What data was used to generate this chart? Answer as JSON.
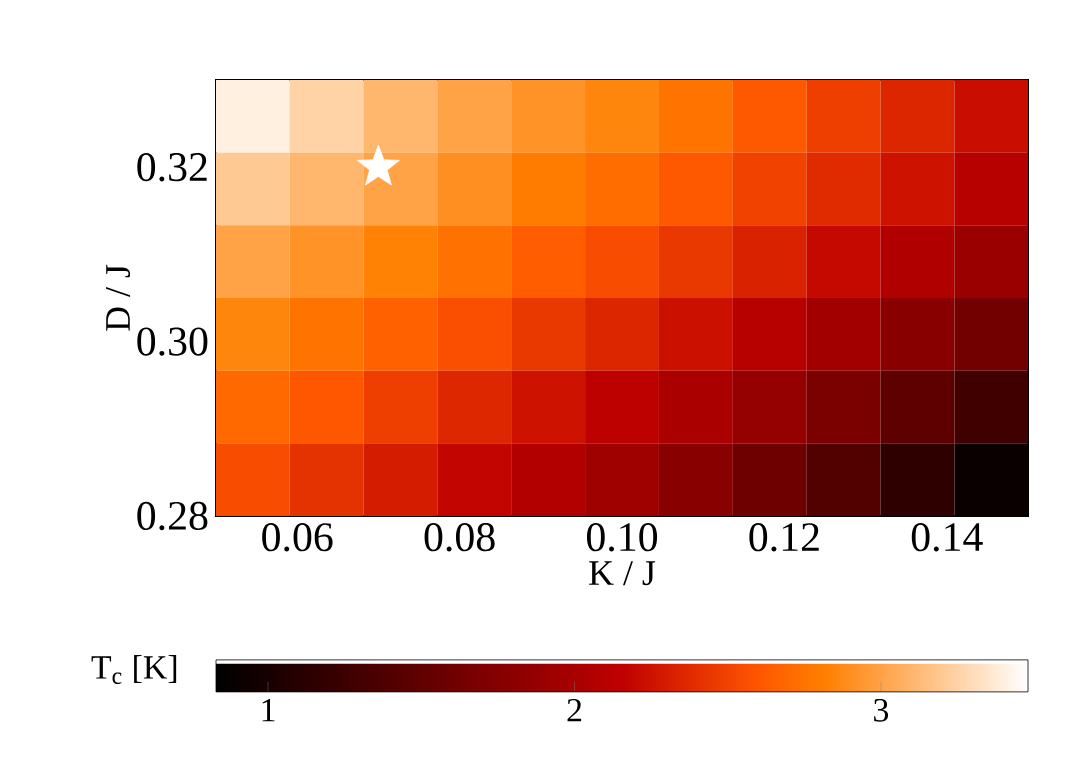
{
  "chart_data": {
    "type": "heatmap",
    "xlabel": "K / J",
    "ylabel": "D / J",
    "clabel": "T$_{c}$ [K]",
    "x": [
      0.0545,
      0.0636,
      0.0727,
      0.0818,
      0.0909,
      0.1,
      0.1091,
      0.1182,
      0.1273,
      0.1364,
      0.1455
    ],
    "y": [
      0.3258,
      0.3175,
      0.3092,
      0.3008,
      0.2925,
      0.2842
    ],
    "xlim": [
      0.05,
      0.15
    ],
    "ylim": [
      0.28,
      0.33
    ],
    "xticks": [
      0.06,
      0.08,
      {
        "value": 0.1,
        "label": "0.10"
      },
      0.12,
      0.14
    ],
    "yticks": [
      0.28,
      {
        "value": 0.3,
        "label": "0.30"
      },
      0.32
    ],
    "cells": [
      [
        3.4,
        3.25,
        3.1,
        3.0,
        2.92,
        2.85,
        2.75,
        2.62,
        2.48,
        2.35,
        2.22
      ],
      [
        3.2,
        3.1,
        3.0,
        2.9,
        2.8,
        2.72,
        2.62,
        2.5,
        2.38,
        2.25,
        2.1
      ],
      [
        3.0,
        2.92,
        2.83,
        2.74,
        2.64,
        2.55,
        2.45,
        2.33,
        2.2,
        2.05,
        1.9
      ],
      [
        2.85,
        2.76,
        2.66,
        2.56,
        2.45,
        2.35,
        2.24,
        2.1,
        1.95,
        1.78,
        1.62
      ],
      [
        2.7,
        2.6,
        2.48,
        2.36,
        2.25,
        2.14,
        2.01,
        1.86,
        1.68,
        1.48,
        1.28
      ],
      [
        2.55,
        2.42,
        2.3,
        2.18,
        2.06,
        1.93,
        1.78,
        1.6,
        1.4,
        1.15,
        0.9
      ]
    ],
    "clim": [
      0.83,
      3.48
    ],
    "cticks": [
      1,
      2,
      3
    ],
    "series": [
      {
        "type": "scatter",
        "x": [
          0.07
        ],
        "values": [
          0.32
        ],
        "color": "#ffffff",
        "marker": "star"
      }
    ],
    "grid": false
  }
}
